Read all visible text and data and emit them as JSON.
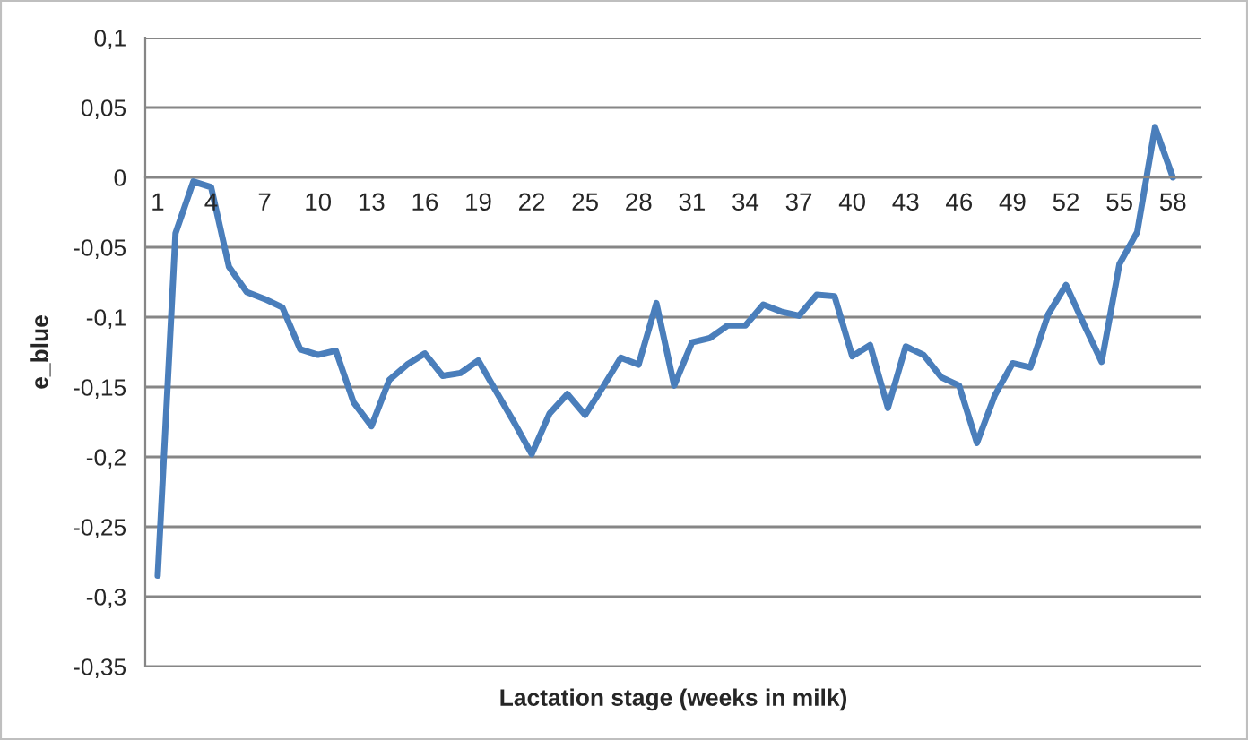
{
  "chart_data": {
    "type": "line",
    "xlabel": "Lactation stage (weeks in milk)",
    "ylabel": "e_blue",
    "categories": [
      "1",
      null,
      null,
      "4",
      null,
      null,
      "7",
      null,
      null,
      "10",
      null,
      null,
      "13",
      null,
      null,
      "16",
      null,
      null,
      "19",
      null,
      null,
      "22",
      null,
      null,
      "25",
      null,
      null,
      "28",
      null,
      null,
      "31",
      null,
      null,
      "34",
      null,
      null,
      "37",
      null,
      null,
      "40",
      null,
      null,
      "43",
      null,
      null,
      "46",
      null,
      null,
      "49",
      null,
      null,
      "52",
      null,
      null,
      "55",
      null,
      null,
      "58"
    ],
    "series": [
      {
        "color": "#4a7ebb",
        "values": [
          -0.285,
          -0.04,
          -0.003,
          -0.007,
          -0.064,
          -0.082,
          -0.087,
          -0.093,
          -0.123,
          -0.127,
          -0.124,
          -0.161,
          -0.178,
          -0.145,
          -0.134,
          -0.126,
          -0.142,
          -0.14,
          -0.131,
          -0.153,
          -0.175,
          -0.198,
          -0.169,
          -0.155,
          -0.17,
          -0.15,
          -0.129,
          -0.134,
          -0.09,
          -0.149,
          -0.118,
          -0.115,
          -0.106,
          -0.106,
          -0.091,
          -0.096,
          -0.099,
          -0.084,
          -0.085,
          -0.128,
          -0.12,
          -0.165,
          -0.121,
          -0.127,
          -0.143,
          -0.149,
          -0.19,
          -0.156,
          -0.133,
          -0.136,
          -0.098,
          -0.077,
          -0.105,
          -0.132,
          -0.062,
          -0.039,
          0.036,
          0.0
        ]
      }
    ],
    "ylim": [
      -0.35,
      0.1
    ],
    "yticks": [
      {
        "value": -0.35,
        "label": "-0,35"
      },
      {
        "value": -0.3,
        "label": "-0,3"
      },
      {
        "value": -0.25,
        "label": "-0,25"
      },
      {
        "value": -0.2,
        "label": "-0,2"
      },
      {
        "value": -0.15,
        "label": "-0,15"
      },
      {
        "value": -0.1,
        "label": "-0,1"
      },
      {
        "value": -0.05,
        "label": "-0,05"
      },
      {
        "value": 0,
        "label": "0"
      },
      {
        "value": 0.05,
        "label": "0,05"
      },
      {
        "value": 0.1,
        "label": "0,1"
      }
    ],
    "grid": "y",
    "marker": "none",
    "line_style": "solid",
    "legend": false
  }
}
